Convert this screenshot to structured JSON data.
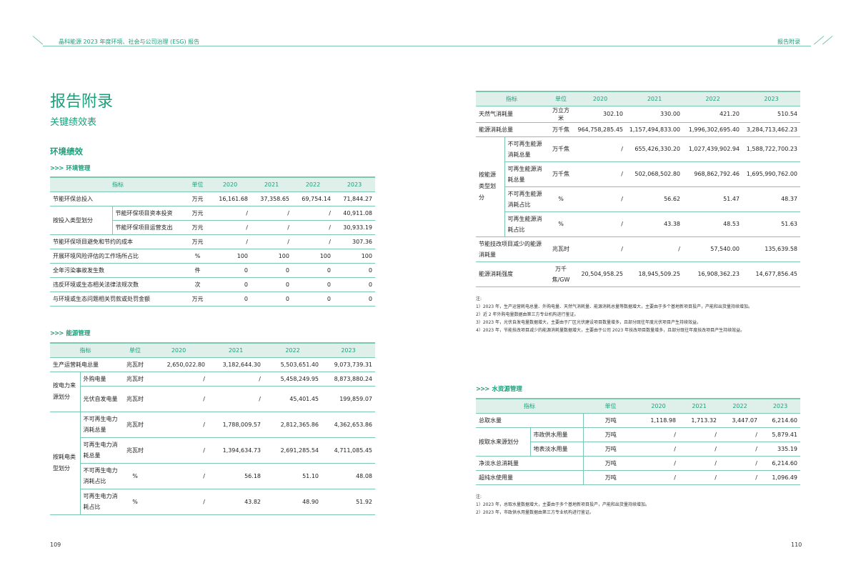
{
  "header": {
    "left_title": "晶科能源 2023 年度环境、社会与公司治理 (ESG) 报告",
    "right_title": "报告附录"
  },
  "page_title": "报告附录",
  "sub_title": "关键绩效表",
  "section_title": "环境绩效",
  "arrow": ">>>",
  "env_mgmt": {
    "label": "环境管理",
    "headers": [
      "指标",
      "单位",
      "2020",
      "2021",
      "2022",
      "2023"
    ],
    "rows": {
      "r0": {
        "name": "节能环保总投入",
        "unit": "万元",
        "v": [
          "16,161.68",
          "37,358.65",
          "69,754.14",
          "71,844.27"
        ]
      },
      "group1": "按投入类型划分",
      "r1": {
        "name": "节能环保项目资本投资",
        "unit": "万元",
        "v": [
          "/",
          "/",
          "/",
          "40,911.08"
        ]
      },
      "r2": {
        "name": "节能环保项目运营支出",
        "unit": "万元",
        "v": [
          "/",
          "/",
          "/",
          "30,933.19"
        ]
      },
      "r3": {
        "name": "节能环保项目避免和节约的成本",
        "unit": "万元",
        "v": [
          "/",
          "/",
          "/",
          "307.36"
        ]
      },
      "r4": {
        "name": "开展环境风险评估的工作场所占比",
        "unit": "%",
        "v": [
          "100",
          "100",
          "100",
          "100"
        ]
      },
      "r5": {
        "name": "全年污染事故发生数",
        "unit": "件",
        "v": [
          "0",
          "0",
          "0",
          "0"
        ]
      },
      "r6": {
        "name": "违反环境或生态相关法律法规次数",
        "unit": "次",
        "v": [
          "0",
          "0",
          "0",
          "0"
        ]
      },
      "r7": {
        "name": "与环境或生态问题相关罚款或处罚金额",
        "unit": "万元",
        "v": [
          "0",
          "0",
          "0",
          "0"
        ]
      }
    }
  },
  "energy_mgmt": {
    "label": "能源管理",
    "headers": [
      "指标",
      "单位",
      "2020",
      "2021",
      "2022",
      "2023"
    ],
    "rows": {
      "r0": {
        "name": "生产运营耗电总量",
        "unit": "兆瓦时",
        "v": [
          "2,650,022.80",
          "3,182,644.30",
          "5,503,651.40",
          "9,073,739.31"
        ]
      },
      "group1": "按电力来源划分",
      "r1": {
        "name": "外购电量",
        "unit": "兆瓦时",
        "v": [
          "/",
          "/",
          "5,458,249.95",
          "8,873,880.24"
        ]
      },
      "r2": {
        "name": "光伏自发电量",
        "unit": "兆瓦时",
        "v": [
          "/",
          "/",
          "45,401.45",
          "199,859.07"
        ]
      },
      "group2": "按耗电类型划分",
      "r3": {
        "name": "不可再生电力消耗总量",
        "unit": "兆瓦时",
        "v": [
          "/",
          "1,788,009.57",
          "2,812,365.86",
          "4,362,653.86"
        ]
      },
      "r4": {
        "name": "可再生电力消耗总量",
        "unit": "兆瓦时",
        "v": [
          "/",
          "1,394,634.73",
          "2,691,285.54",
          "4,711,085.45"
        ]
      },
      "r5": {
        "name": "不可再生电力消耗占比",
        "unit": "%",
        "v": [
          "/",
          "56.18",
          "51.10",
          "48.08"
        ]
      },
      "r6": {
        "name": "可再生电力消耗占比",
        "unit": "%",
        "v": [
          "/",
          "43.82",
          "48.90",
          "51.92"
        ]
      }
    }
  },
  "energy_cont": {
    "headers": [
      "指标",
      "单位",
      "2020",
      "2021",
      "2022",
      "2023"
    ],
    "rows": {
      "r0": {
        "name": "天然气消耗量",
        "unit": "万立方米",
        "v": [
          "302.10",
          "330.00",
          "421.20",
          "510.54"
        ]
      },
      "r1": {
        "name": "能源消耗总量",
        "unit": "万千焦",
        "v": [
          "964,758,285.45",
          "1,157,494,833.00",
          "1,996,302,695.40",
          "3,284,713,462.23"
        ]
      },
      "group1": "按能源类型划分",
      "r2": {
        "name": "不可再生能源消耗总量",
        "unit": "万千焦",
        "v": [
          "/",
          "655,426,330.20",
          "1,027,439,902.94",
          "1,588,722,700.23"
        ]
      },
      "r3": {
        "name": "可再生能源消耗总量",
        "unit": "万千焦",
        "v": [
          "/",
          "502,068,502.80",
          "968,862,792.46",
          "1,695,990,762.00"
        ]
      },
      "r4": {
        "name": "不可再生能源消耗占比",
        "unit": "%",
        "v": [
          "/",
          "56.62",
          "51.47",
          "48.37"
        ]
      },
      "r5": {
        "name": "可再生能源消耗占比",
        "unit": "%",
        "v": [
          "/",
          "43.38",
          "48.53",
          "51.63"
        ]
      },
      "r6": {
        "name": "节能技改项目减少的能源消耗量",
        "unit": "兆瓦时",
        "v": [
          "/",
          "/",
          "57,540.00",
          "135,639.58"
        ]
      },
      "r7": {
        "name": "能源消耗强度",
        "unit": "万千焦/GW",
        "v": [
          "20,504,958.25",
          "18,945,509.25",
          "16,908,362.23",
          "14,677,856.45"
        ]
      }
    },
    "notes": [
      "注:",
      "1）2023 年，生产运营耗电总量、外购电量、天然气消耗量、能源消耗总量等数据增大，主要由于多个基地新项目投产，产能和出货量持续增加。",
      "2）近 2 年外购电量数据由第三方专业机构进行鉴证。",
      "3）2023 年，光伏自发电量数据增大，主要由于厂区光伏建设项目数量增多，且部分既往年度光伏项目产生持续效益。",
      "4）2023 年，节能技改项目减少的能源消耗量数据增大，主要由于公司 2023 年技改项目数量增多，且部分既往年度技改项目产生持续效益。"
    ]
  },
  "water_mgmt": {
    "label": "水资源管理",
    "headers": [
      "指标",
      "单位",
      "2020",
      "2021",
      "2022",
      "2023"
    ],
    "rows": {
      "r0": {
        "name": "总取水量",
        "unit": "万吨",
        "v": [
          "1,118.98",
          "1,713.32",
          "3,447.07",
          "6,214.60"
        ]
      },
      "group1": "按取水来源划分",
      "r1": {
        "name": "市政供水用量",
        "unit": "万吨",
        "v": [
          "/",
          "/",
          "/",
          "5,879.41"
        ]
      },
      "r2": {
        "name": "地表淡水用量",
        "unit": "万吨",
        "v": [
          "/",
          "/",
          "/",
          "335.19"
        ]
      },
      "r3": {
        "name": "净淡水总消耗量",
        "unit": "万吨",
        "v": [
          "/",
          "/",
          "/",
          "6,214.60"
        ]
      },
      "r4": {
        "name": "超纯水使用量",
        "unit": "万吨",
        "v": [
          "/",
          "/",
          "/",
          "1,096.49"
        ]
      }
    },
    "notes": [
      "注:",
      "1）2023 年，总取水量数据增大，主要由于多个基地新项目投产，产能和出货量持续增加。",
      "2）2023 年，市政供水用量数据由第三方专业机构进行鉴证。"
    ]
  },
  "page_left": "109",
  "page_right": "110"
}
